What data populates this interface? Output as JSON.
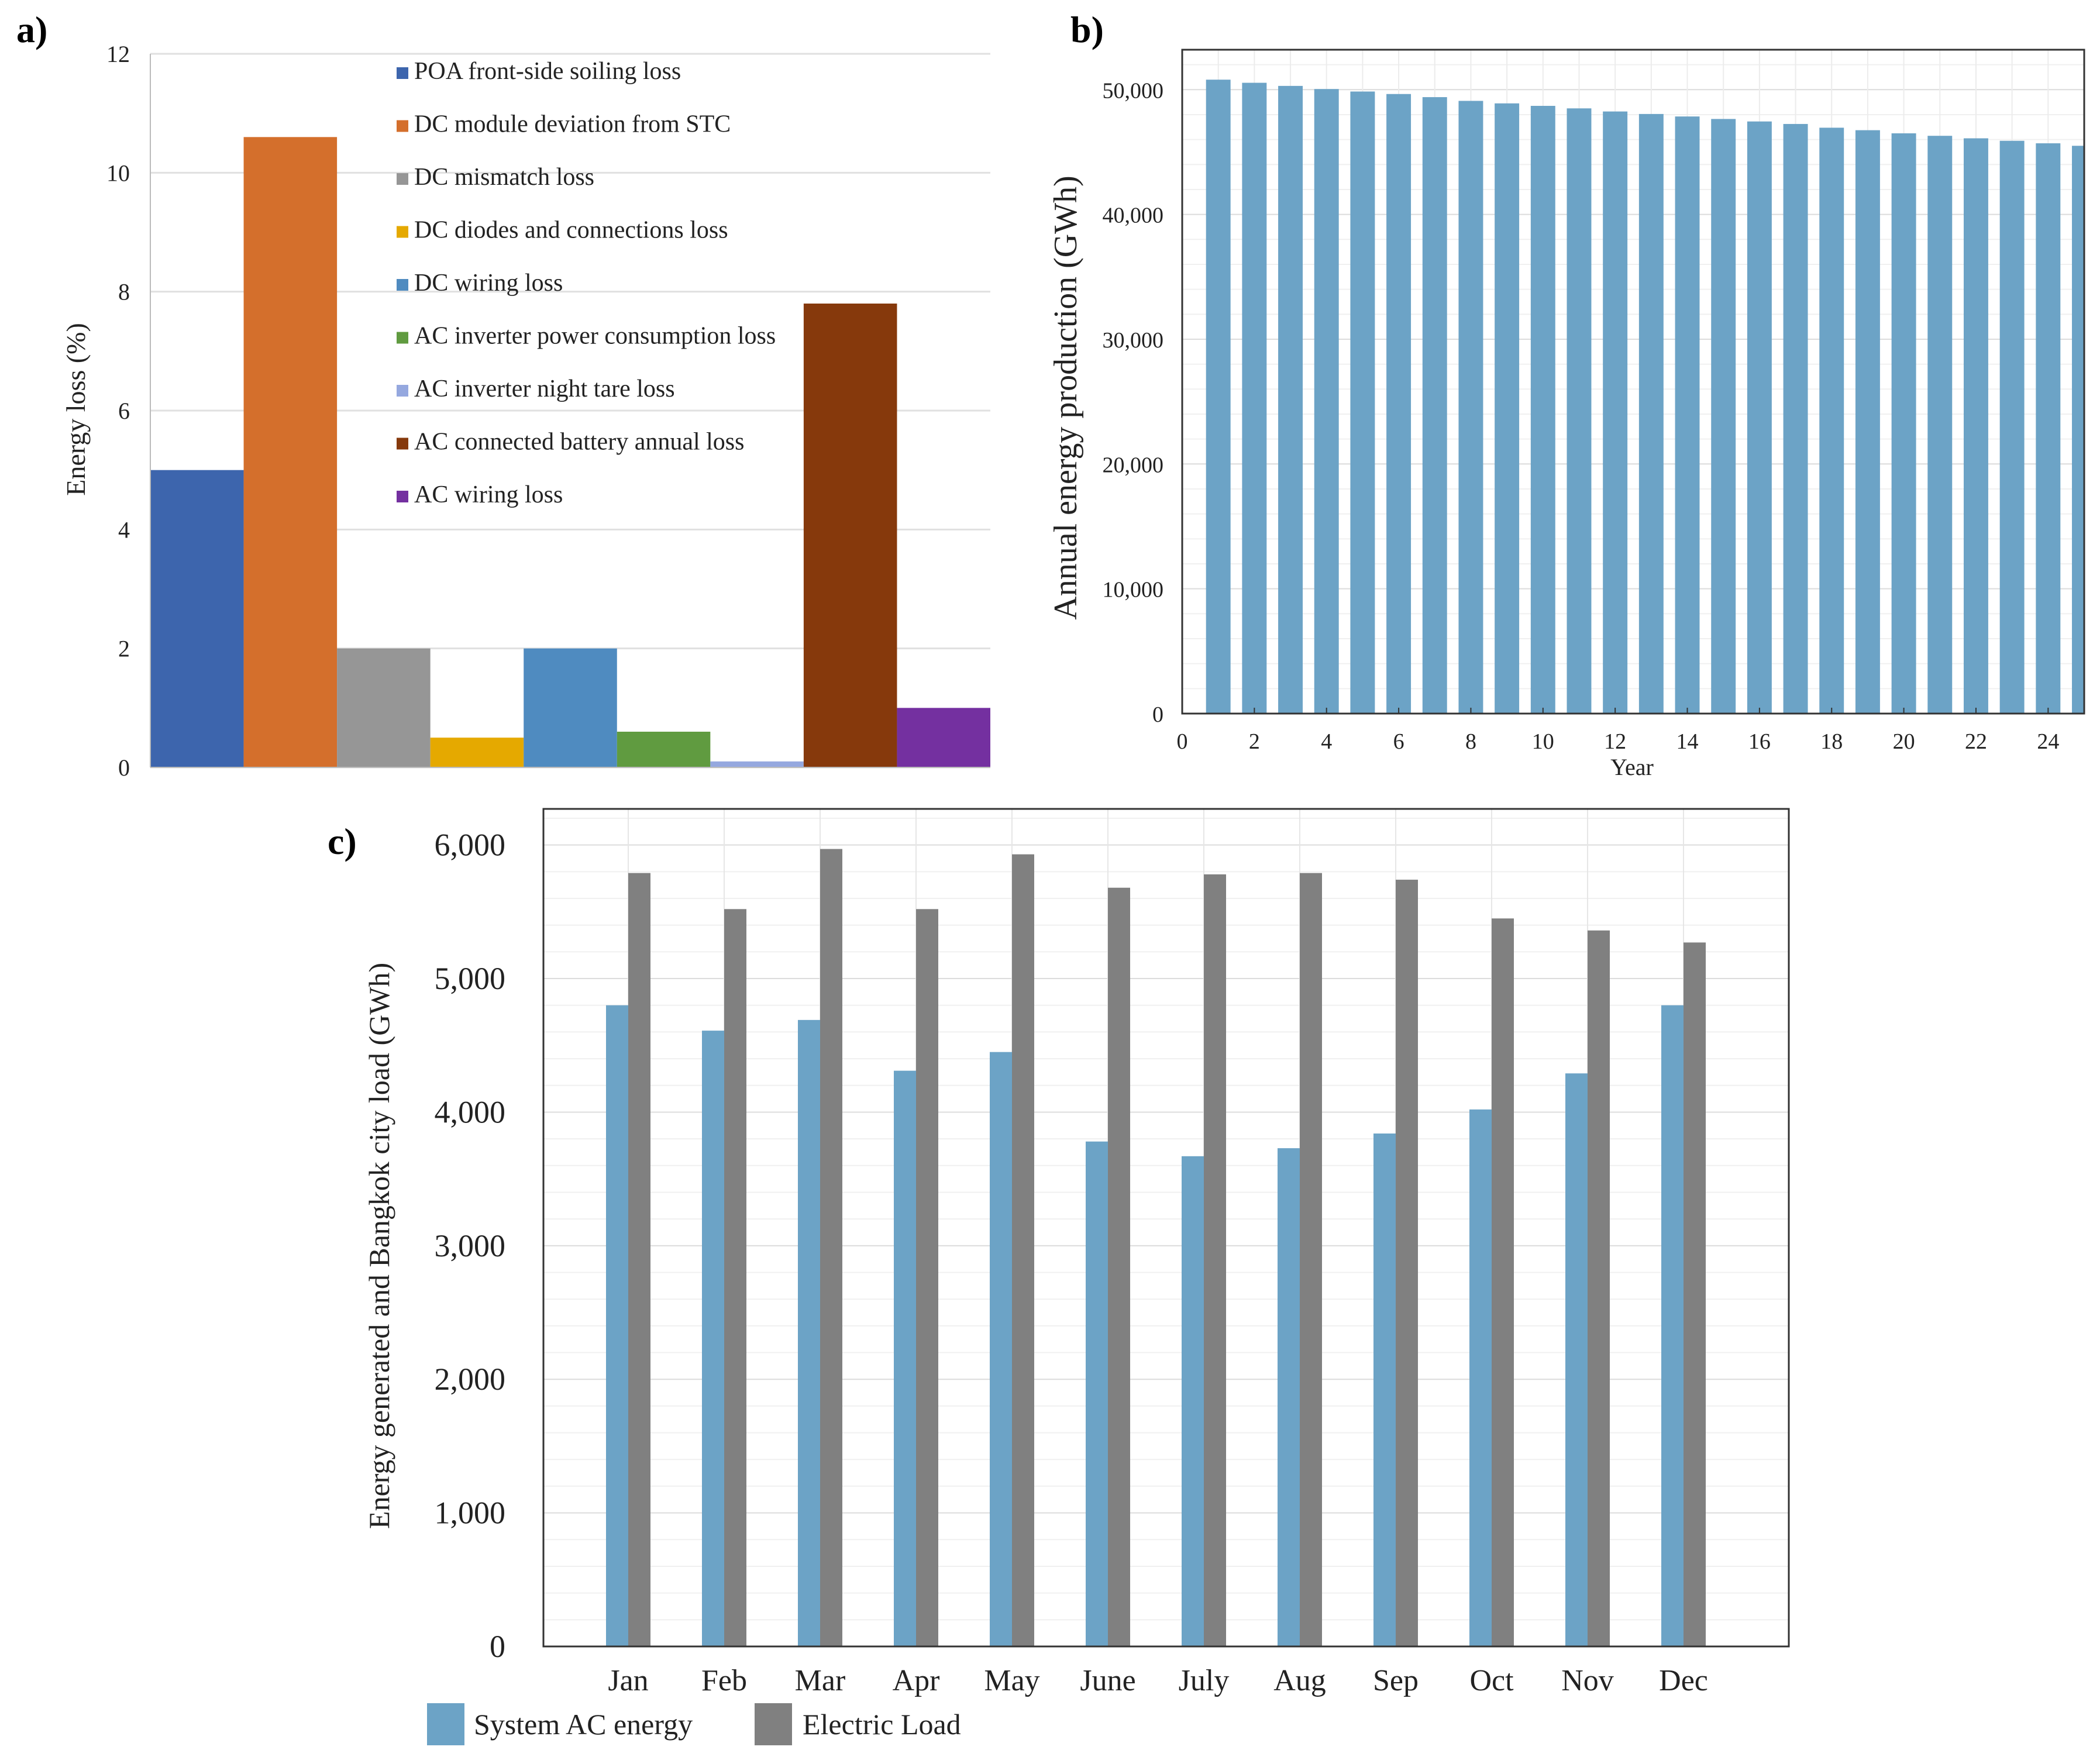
{
  "chart_data": [
    {
      "panel_label": "a)",
      "type": "bar",
      "ylabel": "Energy loss (%)",
      "xlabel": "",
      "ylim": [
        0,
        12
      ],
      "yticks": [
        "0",
        "2",
        "4",
        "6",
        "8",
        "10",
        "12"
      ],
      "grid": true,
      "legend_position": "top-center",
      "categories": [
        "POA front-side soiling loss",
        "DC module deviation from STC",
        "DC mismatch loss",
        "DC diodes and connections loss",
        "DC wiring loss",
        "AC inverter power consumption loss",
        "AC inverter night tare loss",
        "AC connected battery annual loss",
        "AC wiring loss"
      ],
      "values": [
        5.0,
        10.6,
        2.0,
        0.5,
        2.0,
        0.6,
        0.1,
        7.8,
        1.0
      ],
      "colors": [
        "#3d65ad",
        "#d46f2c",
        "#969696",
        "#e5a900",
        "#4f8bc0",
        "#609b40",
        "#95a8df",
        "#86390c",
        "#7430a0"
      ]
    },
    {
      "panel_label": "b)",
      "type": "bar",
      "xlabel": "Year",
      "ylabel": "Annual energy production (GWh)",
      "xlim": [
        0,
        25
      ],
      "ylim": [
        0,
        53200
      ],
      "xticks": [
        "0",
        "2",
        "4",
        "6",
        "8",
        "10",
        "12",
        "14",
        "16",
        "18",
        "20",
        "22",
        "24"
      ],
      "yticks": [
        "0",
        "10,000",
        "20,000",
        "30,000",
        "40,000",
        "50,000"
      ],
      "grid": true,
      "color": "#6ca3c6",
      "x": [
        1,
        2,
        3,
        4,
        5,
        6,
        7,
        8,
        9,
        10,
        11,
        12,
        13,
        14,
        15,
        16,
        17,
        18,
        19,
        20,
        21,
        22,
        23,
        24,
        25
      ],
      "values": [
        50800,
        50550,
        50300,
        50050,
        49850,
        49650,
        49400,
        49100,
        48900,
        48700,
        48500,
        48250,
        48050,
        47850,
        47650,
        47450,
        47250,
        46950,
        46750,
        46500,
        46300,
        46100,
        45900,
        45700,
        45500
      ]
    },
    {
      "panel_label": "c)",
      "type": "bar",
      "xlabel": "",
      "ylabel": "Energy generated and Bangkok city load (GWh)",
      "ylim": [
        0,
        6270
      ],
      "yticks": [
        "0",
        "1,000",
        "2,000",
        "3,000",
        "4,000",
        "5,000",
        "6,000"
      ],
      "grid": true,
      "legend_position": "bottom-left",
      "categories": [
        "Jan",
        "Feb",
        "Mar",
        "Apr",
        "May",
        "June",
        "July",
        "Aug",
        "Sep",
        "Oct",
        "Nov",
        "Dec"
      ],
      "series": [
        {
          "name": "System AC energy",
          "color": "#6ca3c6",
          "values": [
            4800,
            4610,
            4690,
            4310,
            4450,
            3780,
            3670,
            3730,
            3840,
            4020,
            4290,
            4800
          ]
        },
        {
          "name": "Electric Load",
          "color": "#808080",
          "values": [
            5790,
            5520,
            5970,
            5520,
            5930,
            5680,
            5780,
            5790,
            5740,
            5450,
            5360,
            5270
          ]
        }
      ]
    }
  ]
}
